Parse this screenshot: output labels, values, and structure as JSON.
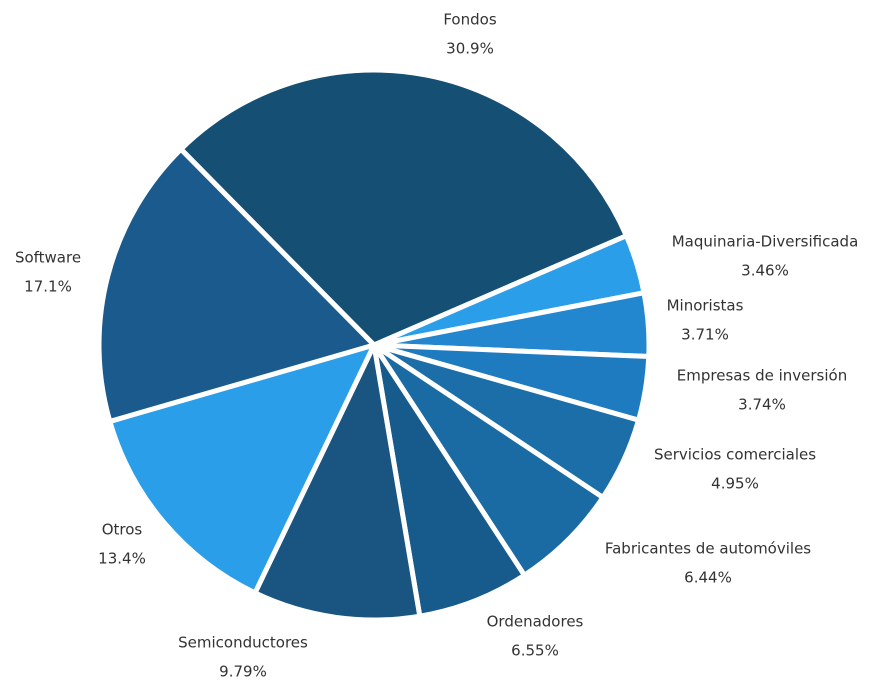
{
  "chart_data": {
    "type": "pie",
    "categories": [
      "Fondos",
      "Maquinaria-Diversificada",
      "Minoristas",
      "Empresas de inversión",
      "Servicios comerciales",
      "Fabricantes de automóviles",
      "Ordenadores",
      "Semiconductores",
      "Otros",
      "Software"
    ],
    "values": [
      30.9,
      3.46,
      3.71,
      3.74,
      4.95,
      6.44,
      6.55,
      9.79,
      13.4,
      17.1
    ],
    "value_labels": [
      "30.9%",
      "3.46%",
      "3.71%",
      "3.74%",
      "4.95%",
      "6.44%",
      "6.55%",
      "9.79%",
      "13.4%",
      "17.1%"
    ],
    "colors": [
      "#154f73",
      "#2a9ee8",
      "#2387d0",
      "#1f7bc0",
      "#1c6ea8",
      "#1a6aa3",
      "#175a8c",
      "#1a5480",
      "#2a9ee8",
      "#1b5a8c"
    ]
  }
}
